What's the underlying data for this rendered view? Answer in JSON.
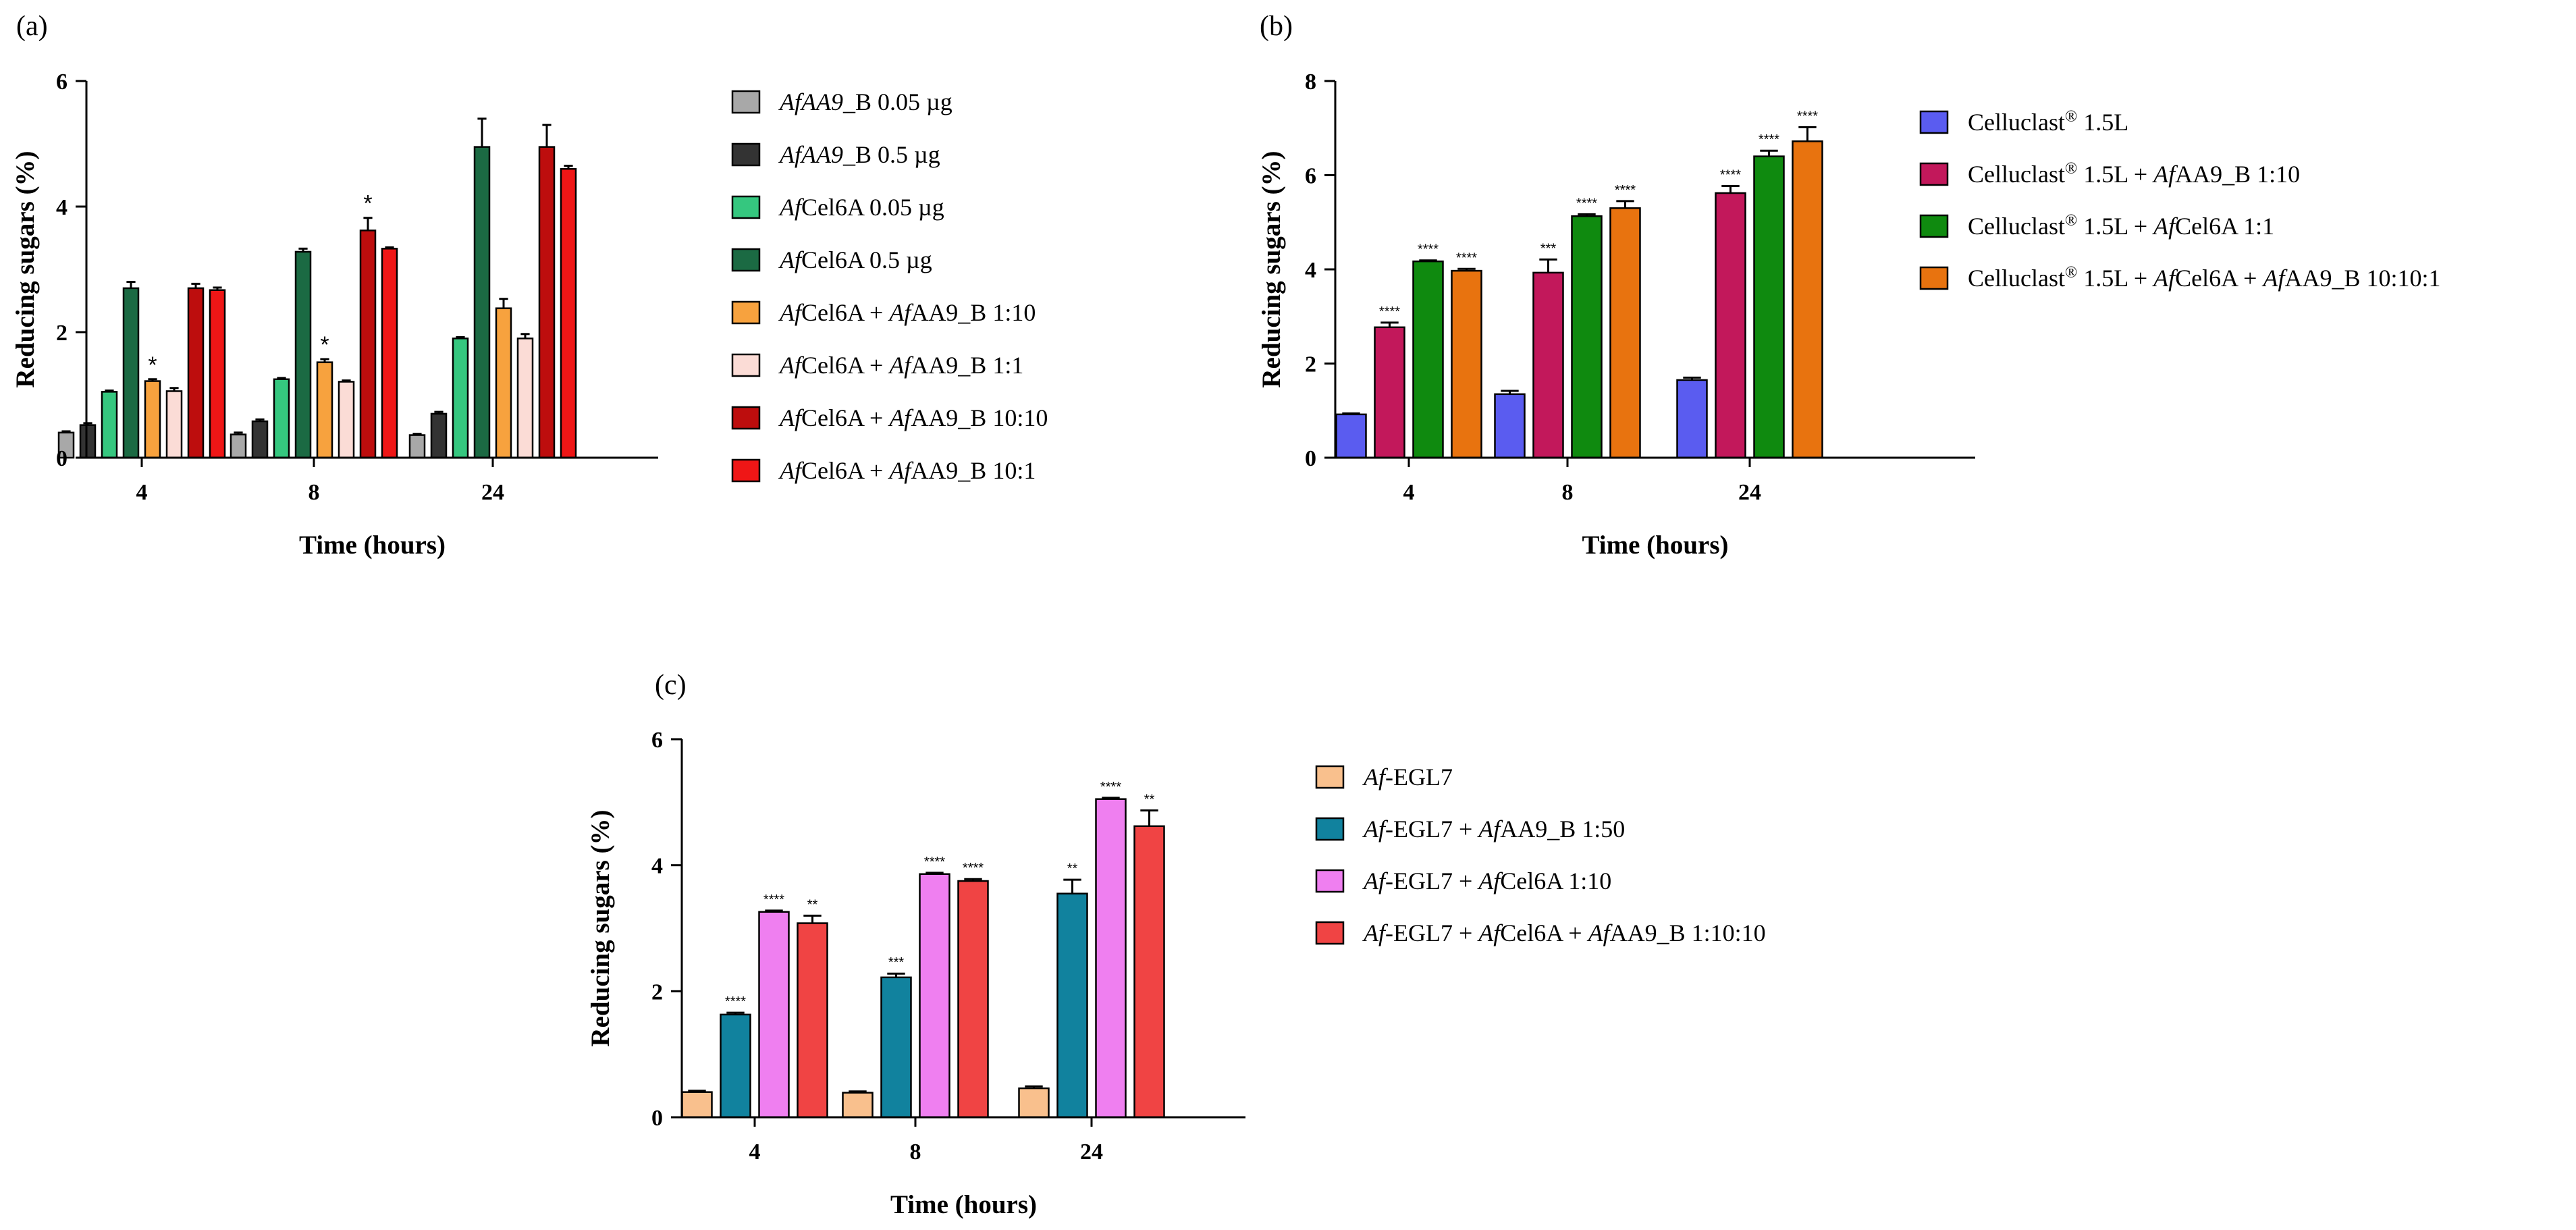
{
  "figure": {
    "panels": [
      "(a)",
      "(b)",
      "(c)"
    ]
  },
  "chart_data": [
    {
      "panel": "(a)",
      "type": "bar",
      "xlabel": "Time (hours)",
      "ylabel": "Reducing sugars (%)",
      "ylim": [
        0,
        6
      ],
      "yticks": [
        "0",
        "2",
        "4",
        "6"
      ],
      "categories": [
        "4",
        "8",
        "24"
      ],
      "series": [
        {
          "name": "AfAA9_B 0.05 µg",
          "label_parts": [
            [
              "AfAA9",
              true
            ],
            [
              "_B 0.05 µg",
              false
            ]
          ],
          "color": "#a8a8a8",
          "values": [
            0.4,
            0.37,
            0.36
          ],
          "errors": [
            0.02,
            0.03,
            0.02
          ],
          "sig": [
            "",
            "",
            ""
          ]
        },
        {
          "name": "AfAA9_B 0.5 µg",
          "label_parts": [
            [
              "AfAA9",
              true
            ],
            [
              "_B  0.5 µg",
              false
            ]
          ],
          "color": "#333333",
          "values": [
            0.52,
            0.58,
            0.7
          ],
          "errors": [
            0.03,
            0.03,
            0.03
          ],
          "sig": [
            "",
            "",
            ""
          ]
        },
        {
          "name": "AfCel6A 0.05 µg",
          "label_parts": [
            [
              "Af",
              true
            ],
            [
              "Cel6A 0.05 µg",
              false
            ]
          ],
          "color": "#35c77f",
          "values": [
            1.05,
            1.25,
            1.9
          ],
          "errors": [
            0.02,
            0.02,
            0.02
          ],
          "sig": [
            "",
            "",
            ""
          ]
        },
        {
          "name": "AfCel6A 0.5 µg",
          "label_parts": [
            [
              "Af",
              true
            ],
            [
              "Cel6A 0.5 µg",
              false
            ]
          ],
          "color": "#1b6a43",
          "values": [
            2.7,
            3.28,
            4.95
          ],
          "errors": [
            0.1,
            0.05,
            0.45
          ],
          "sig": [
            "",
            "",
            ""
          ]
        },
        {
          "name": "AfCel6A + AfAA9_B 1:10",
          "label_parts": [
            [
              "Af",
              true
            ],
            [
              "Cel6A + ",
              false
            ],
            [
              "Af",
              true
            ],
            [
              "AA9_B 1:10",
              false
            ]
          ],
          "color": "#f7a23e",
          "values": [
            1.22,
            1.52,
            2.38
          ],
          "errors": [
            0.03,
            0.05,
            0.15
          ],
          "sig": [
            "*",
            "*",
            ""
          ]
        },
        {
          "name": "AfCel6A + AfAA9_B 1:1",
          "label_parts": [
            [
              "Af",
              true
            ],
            [
              "Cel6A + ",
              false
            ],
            [
              "Af",
              true
            ],
            [
              "AA9_B 1:1",
              false
            ]
          ],
          "color": "#fbdcd6",
          "values": [
            1.06,
            1.21,
            1.9
          ],
          "errors": [
            0.05,
            0.02,
            0.07
          ],
          "sig": [
            "",
            "",
            ""
          ]
        },
        {
          "name": "AfCel6A + AfAA9_B 10:10",
          "label_parts": [
            [
              "Af",
              true
            ],
            [
              "Cel6A + ",
              false
            ],
            [
              "Af",
              true
            ],
            [
              "AA9_B 10:10",
              false
            ]
          ],
          "color": "#bd0d0d",
          "values": [
            2.7,
            3.62,
            4.95
          ],
          "errors": [
            0.07,
            0.2,
            0.35
          ],
          "sig": [
            "",
            "*",
            ""
          ]
        },
        {
          "name": "AfCel6A + AfAA9_B 10:1",
          "label_parts": [
            [
              "Af",
              true
            ],
            [
              "Cel6A + ",
              false
            ],
            [
              "Af",
              true
            ],
            [
              "AA9_B 10:1",
              false
            ]
          ],
          "color": "#ef1616",
          "values": [
            2.67,
            3.33,
            4.6
          ],
          "errors": [
            0.04,
            0.02,
            0.05
          ],
          "sig": [
            "",
            "",
            ""
          ]
        }
      ]
    },
    {
      "panel": "(b)",
      "type": "bar",
      "xlabel": "Time (hours)",
      "ylabel": "Reducing sugars (%)",
      "ylim": [
        0,
        8
      ],
      "yticks": [
        "0",
        "2",
        "4",
        "6",
        "8"
      ],
      "categories": [
        "4",
        "8",
        "24"
      ],
      "series": [
        {
          "name": "Celluclast® 1.5L",
          "label_parts": [
            [
              "Celluclast",
              false
            ],
            [
              "®",
              false,
              true
            ],
            [
              " 1.5L",
              false
            ]
          ],
          "color": "#5a5cf0",
          "values": [
            0.92,
            1.35,
            1.65
          ],
          "errors": [
            0.02,
            0.07,
            0.05
          ],
          "sig": [
            "",
            "",
            ""
          ]
        },
        {
          "name": "Celluclast® 1.5L + AfAA9_B 1:10",
          "label_parts": [
            [
              "Celluclast",
              false
            ],
            [
              "®",
              false,
              true
            ],
            [
              " 1.5L + ",
              false
            ],
            [
              "Af",
              true
            ],
            [
              "AA9_B 1:10",
              false
            ]
          ],
          "color": "#c2185b",
          "values": [
            2.77,
            3.93,
            5.62
          ],
          "errors": [
            0.1,
            0.28,
            0.15
          ],
          "sig": [
            "****",
            "***",
            "****"
          ]
        },
        {
          "name": "Celluclast® 1.5L + AfCel6A 1:1",
          "label_parts": [
            [
              "Celluclast",
              false
            ],
            [
              "®",
              false,
              true
            ],
            [
              " 1.5L + ",
              false
            ],
            [
              "Af",
              true
            ],
            [
              "Cel6A 1:1",
              false
            ]
          ],
          "color": "#0f8a0f",
          "values": [
            4.17,
            5.13,
            6.4
          ],
          "errors": [
            0.02,
            0.04,
            0.12
          ],
          "sig": [
            "****",
            "****",
            "****"
          ]
        },
        {
          "name": "Celluclast® 1.5L + AfCel6A + AfAA9_B 10:10:1",
          "label_parts": [
            [
              "Celluclast",
              false
            ],
            [
              "®",
              false,
              true
            ],
            [
              " 1.5L + ",
              false
            ],
            [
              "Af",
              true
            ],
            [
              "Cel6A + ",
              false
            ],
            [
              "Af",
              true
            ],
            [
              "AA9_B 10:10:1",
              false
            ]
          ],
          "color": "#e8730f",
          "values": [
            3.97,
            5.3,
            6.72
          ],
          "errors": [
            0.04,
            0.15,
            0.3
          ],
          "sig": [
            "****",
            "****",
            "****"
          ]
        }
      ]
    },
    {
      "panel": "(c)",
      "type": "bar",
      "xlabel": "Time (hours)",
      "ylabel": "Reducing sugars (%)",
      "ylim": [
        0,
        6
      ],
      "yticks": [
        "0",
        "2",
        "4",
        "6"
      ],
      "categories": [
        "4",
        "8",
        "24"
      ],
      "series": [
        {
          "name": "Af-EGL7",
          "label_parts": [
            [
              "Af",
              true
            ],
            [
              "-EGL7",
              false
            ]
          ],
          "color": "#f9c08d",
          "values": [
            0.4,
            0.39,
            0.46
          ],
          "errors": [
            0.02,
            0.02,
            0.03
          ],
          "sig": [
            "",
            "",
            ""
          ]
        },
        {
          "name": "Af-EGL7 + AfAA9_B 1:50",
          "label_parts": [
            [
              "Af",
              true
            ],
            [
              "-EGL7 + ",
              false
            ],
            [
              "Af",
              true
            ],
            [
              "AA9_B 1:50",
              false
            ]
          ],
          "color": "#11829e",
          "values": [
            1.63,
            2.22,
            3.55
          ],
          "errors": [
            0.03,
            0.06,
            0.22
          ],
          "sig": [
            "****",
            "***",
            "**"
          ]
        },
        {
          "name": "Af-EGL7 + AfCel6A 1:10",
          "label_parts": [
            [
              "Af",
              true
            ],
            [
              "-EGL7 + ",
              false
            ],
            [
              "Af",
              true
            ],
            [
              "Cel6A 1:10",
              false
            ]
          ],
          "color": "#ef7ff0",
          "values": [
            3.26,
            3.86,
            5.05
          ],
          "errors": [
            0.02,
            0.02,
            0.02
          ],
          "sig": [
            "****",
            "****",
            "****"
          ]
        },
        {
          "name": "Af-EGL7 + AfCel6A + AfAA9_B 1:10:10",
          "label_parts": [
            [
              "Af",
              true
            ],
            [
              "-EGL7 + ",
              false
            ],
            [
              "Af",
              true
            ],
            [
              "Cel6A + ",
              false
            ],
            [
              "Af",
              true
            ],
            [
              "AA9_B 1:10:10",
              false
            ]
          ],
          "color": "#f04444",
          "values": [
            3.08,
            3.75,
            4.62
          ],
          "errors": [
            0.12,
            0.03,
            0.25
          ],
          "sig": [
            "**",
            "****",
            "**"
          ]
        }
      ]
    }
  ]
}
